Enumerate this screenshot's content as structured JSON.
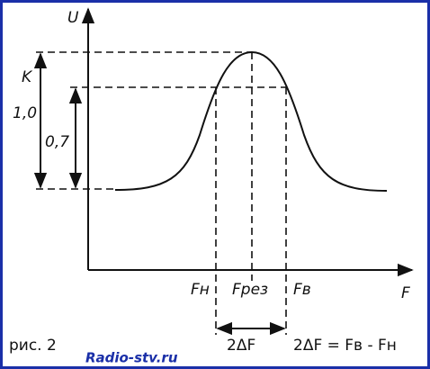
{
  "axes": {
    "y_label": "U",
    "x_label": "F"
  },
  "levels": {
    "k_label": "K",
    "peak_label": "1,0",
    "level_label": "0,7"
  },
  "frequencies": {
    "low": "Fн",
    "resonance": "Fрез",
    "high": "Fв"
  },
  "bandwidth": {
    "label": "2ΔF",
    "formula": "2ΔF = Fв - Fн"
  },
  "caption": "рис. 2",
  "watermark": "Radio-stv.ru"
}
